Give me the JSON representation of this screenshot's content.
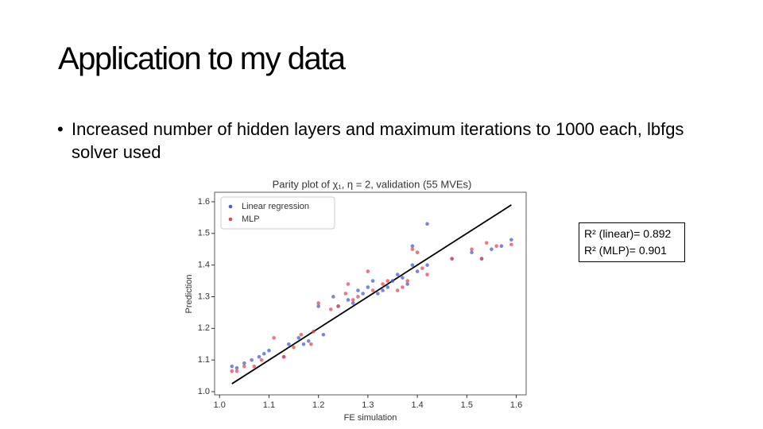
{
  "slide": {
    "title": "Application to my data",
    "bullet": "Increased number of hidden layers and maximum iterations to 1000 each, lbfgs solver used"
  },
  "chart_data": {
    "type": "scatter",
    "title": "Parity plot of χ₁, η = 2, validation (55 MVEs)",
    "x_label": "FE simulation",
    "y_label": "Prediction",
    "xlim": [
      0.99,
      1.62
    ],
    "ylim": [
      0.99,
      1.63
    ],
    "xticks": [
      {
        "value": 1,
        "label": "1.0"
      },
      {
        "value": 1.1,
        "label": "1.1"
      },
      {
        "value": 1.2,
        "label": "1.2"
      },
      {
        "value": 1.3,
        "label": "1.3"
      },
      {
        "value": 1.4,
        "label": "1.4"
      },
      {
        "value": 1.5,
        "label": "1.5"
      },
      {
        "value": 1.6,
        "label": "1.6"
      }
    ],
    "yticks": [
      {
        "value": 1,
        "label": "1.0"
      },
      {
        "value": 1.1,
        "label": "1.1"
      },
      {
        "value": 1.2,
        "label": "1.2"
      },
      {
        "value": 1.3,
        "label": "1.3"
      },
      {
        "value": 1.4,
        "label": "1.4"
      },
      {
        "value": 1.5,
        "label": "1.5"
      },
      {
        "value": 1.6,
        "label": "1.6"
      }
    ],
    "legend": "upper left",
    "reference_line": {
      "color": "#000000",
      "x": [
        1.025,
        1.59
      ],
      "y": [
        1.025,
        1.59
      ]
    },
    "series": [
      {
        "name": "Linear regression",
        "color": "#4a5fd6",
        "x": [
          1.025,
          1.035,
          1.05,
          1.065,
          1.08,
          1.09,
          1.1,
          1.13,
          1.14,
          1.16,
          1.17,
          1.18,
          1.2,
          1.21,
          1.23,
          1.24,
          1.26,
          1.27,
          1.28,
          1.29,
          1.3,
          1.31,
          1.33,
          1.34,
          1.35,
          1.37,
          1.38,
          1.39,
          1.4,
          1.42,
          1.42,
          1.47,
          1.51,
          1.53,
          1.55,
          1.57,
          1.59,
          1.39,
          1.36,
          1.32
        ],
        "values": [
          1.08,
          1.075,
          1.09,
          1.1,
          1.11,
          1.12,
          1.13,
          1.11,
          1.15,
          1.17,
          1.15,
          1.16,
          1.27,
          1.18,
          1.3,
          1.27,
          1.29,
          1.28,
          1.32,
          1.31,
          1.33,
          1.35,
          1.32,
          1.33,
          1.35,
          1.36,
          1.34,
          1.4,
          1.38,
          1.53,
          1.4,
          1.42,
          1.44,
          1.42,
          1.45,
          1.46,
          1.48,
          1.46,
          1.37,
          1.31
        ]
      },
      {
        "name": "MLP",
        "color": "#e8494f",
        "x": [
          1.025,
          1.035,
          1.05,
          1.07,
          1.085,
          1.11,
          1.13,
          1.15,
          1.165,
          1.185,
          1.19,
          1.2,
          1.225,
          1.24,
          1.255,
          1.26,
          1.27,
          1.28,
          1.3,
          1.31,
          1.33,
          1.34,
          1.36,
          1.37,
          1.38,
          1.39,
          1.4,
          1.41,
          1.42,
          1.47,
          1.51,
          1.53,
          1.54,
          1.56,
          1.59
        ],
        "values": [
          1.065,
          1.065,
          1.08,
          1.08,
          1.1,
          1.17,
          1.11,
          1.14,
          1.18,
          1.15,
          1.19,
          1.28,
          1.26,
          1.27,
          1.31,
          1.34,
          1.29,
          1.3,
          1.38,
          1.32,
          1.34,
          1.35,
          1.32,
          1.33,
          1.35,
          1.45,
          1.44,
          1.39,
          1.37,
          1.42,
          1.45,
          1.42,
          1.47,
          1.46,
          1.465
        ]
      }
    ],
    "annotations": [
      "R² (linear)= 0.892",
      "R² (MLP)= 0.901"
    ]
  }
}
